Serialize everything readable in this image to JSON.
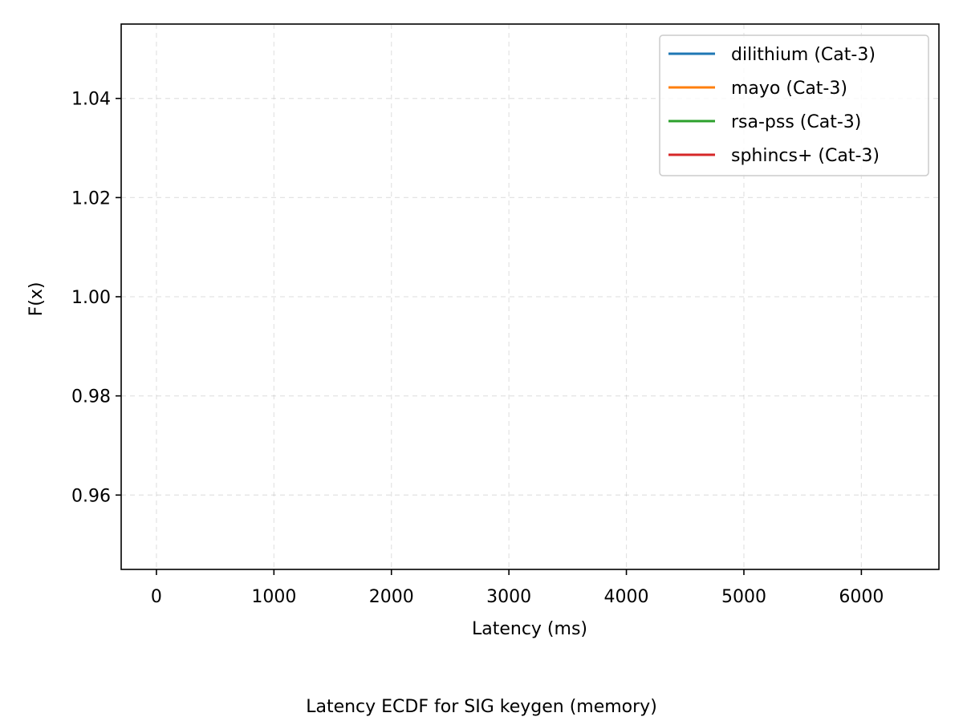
{
  "chart_data": {
    "type": "line",
    "title": "",
    "caption": "Latency ECDF for SIG keygen (memory)",
    "xlabel": "Latency (ms)",
    "ylabel": "F(x)",
    "xlim": [
      -300,
      6660
    ],
    "ylim": [
      0.945,
      1.055
    ],
    "xticks": [
      0,
      1000,
      2000,
      3000,
      4000,
      5000,
      6000
    ],
    "yticks": [
      0.96,
      0.98,
      1.0,
      1.02,
      1.04
    ],
    "xtick_labels": [
      "0",
      "1000",
      "2000",
      "3000",
      "4000",
      "5000",
      "6000"
    ],
    "ytick_labels": [
      "0.96",
      "0.98",
      "1.00",
      "1.02",
      "1.04"
    ],
    "grid": true,
    "legend_position": "top-right",
    "series": [
      {
        "name": "dilithium (Cat-3)",
        "color": "#1f77b4",
        "x": [],
        "y": []
      },
      {
        "name": "mayo (Cat-3)",
        "color": "#ff7f0e",
        "x": [],
        "y": []
      },
      {
        "name": "rsa-pss (Cat-3)",
        "color": "#2ca02c",
        "x": [],
        "y": []
      },
      {
        "name": "sphincs+ (Cat-3)",
        "color": "#d62728",
        "x": [],
        "y": []
      }
    ]
  }
}
